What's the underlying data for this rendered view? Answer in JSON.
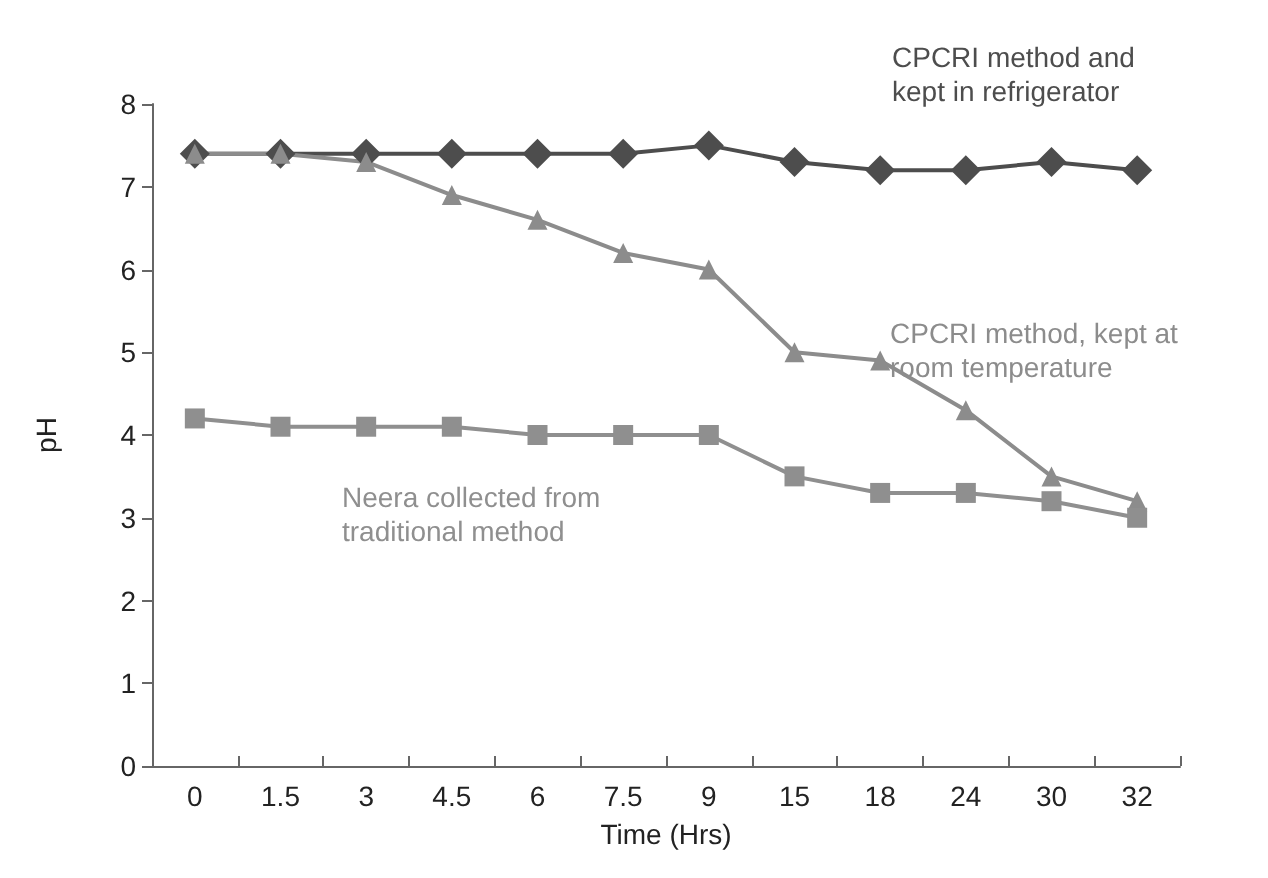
{
  "chart_data": {
    "type": "line",
    "xlabel": "Time (Hrs)",
    "ylabel": "pH",
    "categories": [
      "0",
      "1.5",
      "3",
      "4.5",
      "6",
      "7.5",
      "9",
      "15",
      "18",
      "24",
      "30",
      "32"
    ],
    "ylim": [
      0,
      8
    ],
    "yticks": [
      0,
      1,
      2,
      3,
      4,
      5,
      6,
      7,
      8
    ],
    "grid": false,
    "legend": false,
    "line_style": "solid",
    "series": [
      {
        "name": "CPCRI method and kept in refrigerator",
        "color": "#4d4d4d",
        "marker": "diamond",
        "values": [
          7.4,
          7.4,
          7.4,
          7.4,
          7.4,
          7.4,
          7.5,
          7.3,
          7.2,
          7.2,
          7.3,
          7.2
        ]
      },
      {
        "name": "CPCRI method, kept at room temperature",
        "color": "#8c8c8c",
        "marker": "triangle",
        "values": [
          7.4,
          7.4,
          7.3,
          6.9,
          6.6,
          6.2,
          6.0,
          5.0,
          4.9,
          4.3,
          3.5,
          3.2
        ]
      },
      {
        "name": "Neera collected from traditional method",
        "color": "#8f8f8f",
        "marker": "square",
        "values": [
          4.2,
          4.1,
          4.1,
          4.1,
          4.0,
          4.0,
          4.0,
          3.5,
          3.3,
          3.3,
          3.2,
          3.0
        ]
      }
    ]
  }
}
